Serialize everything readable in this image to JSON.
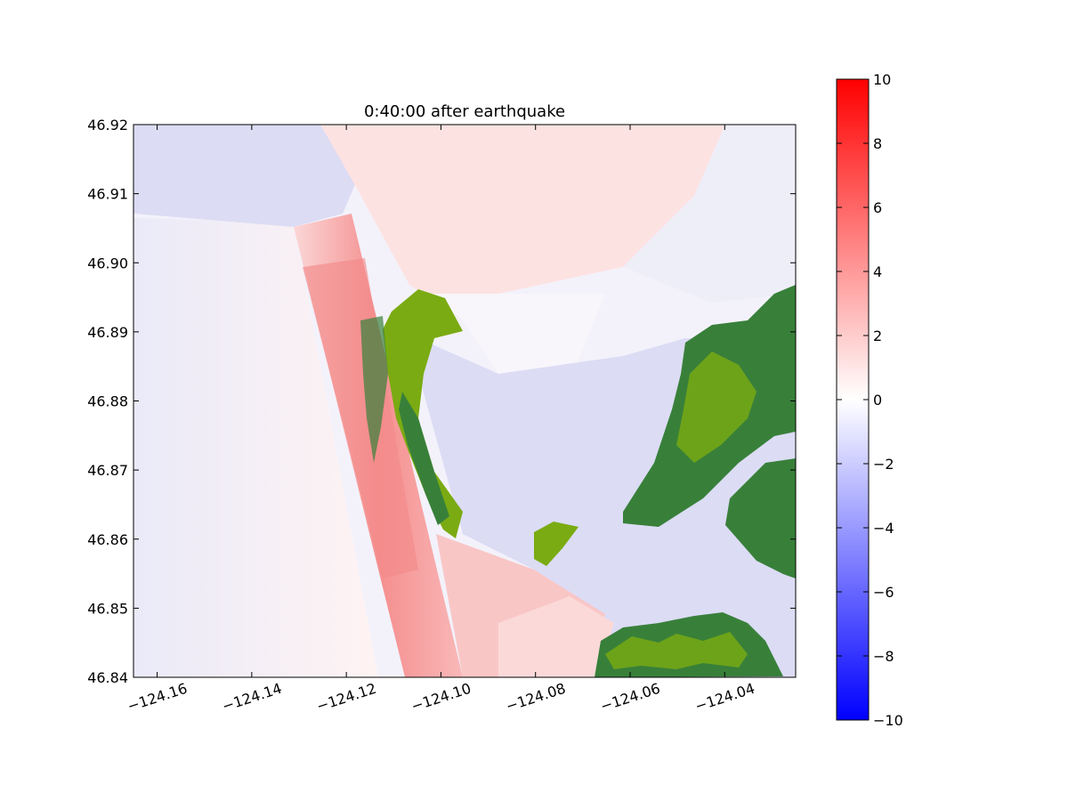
{
  "chart_data": {
    "type": "heatmap",
    "title": "0:40:00 after earthquake",
    "xlabel": "",
    "ylabel": "",
    "xlim": [
      -124.165,
      -124.025
    ],
    "ylim": [
      46.84,
      46.92
    ],
    "x_ticks": [
      -124.16,
      -124.14,
      -124.12,
      -124.1,
      -124.08,
      -124.06,
      -124.04
    ],
    "x_tick_labels": [
      "−124.16",
      "−124.14",
      "−124.12",
      "−124.10",
      "−124.08",
      "−124.06",
      "−124.04"
    ],
    "y_ticks": [
      46.84,
      46.85,
      46.86,
      46.87,
      46.88,
      46.89,
      46.9,
      46.91,
      46.92
    ],
    "y_tick_labels": [
      "46.84",
      "46.85",
      "46.86",
      "46.87",
      "46.88",
      "46.89",
      "46.90",
      "46.91",
      "46.92"
    ],
    "colorbar": {
      "range": [
        -10,
        10
      ],
      "ticks": [
        10,
        8,
        6,
        4,
        2,
        0,
        -2,
        -4,
        -6,
        -8,
        -10
      ],
      "tick_labels": [
        "10",
        "8",
        "6",
        "4",
        "2",
        "0",
        "−2",
        "−4",
        "−6",
        "−8",
        "−10"
      ],
      "colormap": "bwr",
      "low_color": "#0000ff",
      "mid_color": "#ffffff",
      "high_color": "#ff0000"
    },
    "grid": false,
    "land_colors": [
      "#38803a",
      "#7aab12"
    ]
  }
}
